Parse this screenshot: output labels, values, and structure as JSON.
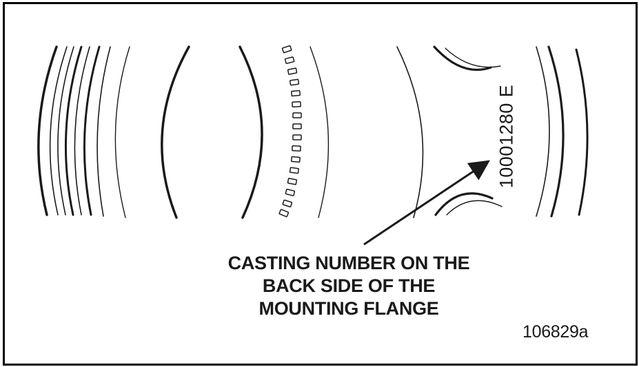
{
  "casting_number": "10001280 E",
  "callout": {
    "line1": "CASTING NUMBER ON THE",
    "line2": "BACK SIDE OF THE",
    "line3": "MOUNTING FLANGE"
  },
  "figure_id": "106829a",
  "colors": {
    "ink": "#1a1a1a",
    "frame": "#000000",
    "background": "#ffffff"
  }
}
